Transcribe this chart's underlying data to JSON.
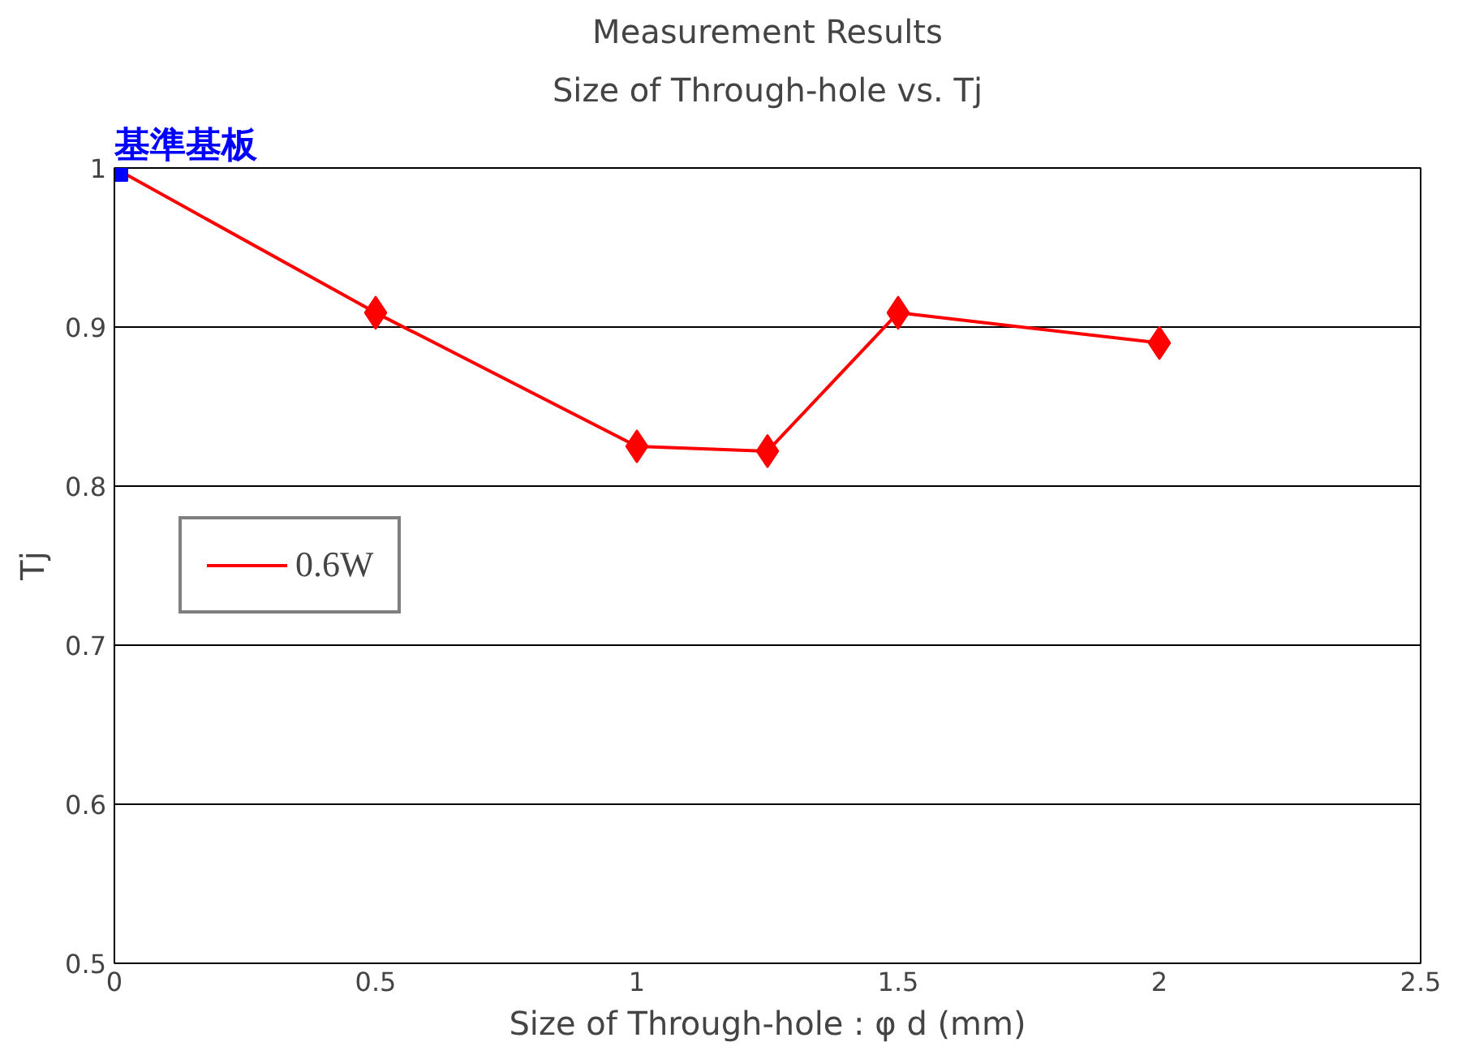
{
  "chart_data": {
    "type": "line",
    "title": "Measurement Results",
    "subtitle": "Size of Through-hole vs. Tj",
    "xlabel": "Size of Through-hole : φ d (mm)",
    "ylabel": "Tj",
    "xlim": [
      0,
      2.5
    ],
    "xticks": [
      0,
      0.5,
      1,
      1.5,
      2,
      2.5
    ],
    "ylim": [
      0.5,
      1
    ],
    "yticks": [
      0.5,
      0.6,
      0.7,
      0.8,
      0.9,
      {
        "value": 1,
        "label": "1"
      }
    ],
    "grid": "y",
    "legend": "left",
    "annotations": [
      {
        "text": "基準基板",
        "x": 0,
        "y": 1
      }
    ],
    "series": [
      {
        "name": "0.6W",
        "color": "#ff0000",
        "marker": "none",
        "x": [
          0,
          0.5,
          1,
          1.25,
          1.5,
          2
        ],
        "values": [
          1,
          0.909,
          0.825,
          0.822,
          0.909,
          0.89
        ]
      },
      {
        "type": "scatter",
        "color": "#ff0000",
        "marker": "diamond",
        "x": [
          0.5,
          1,
          1.25,
          1.5,
          2
        ],
        "values": [
          0.909,
          0.825,
          0.822,
          0.909,
          0.89
        ]
      },
      {
        "type": "scatter",
        "color": "#0000ff",
        "marker": "square",
        "x": [
          0
        ],
        "values": [
          1
        ]
      }
    ]
  }
}
